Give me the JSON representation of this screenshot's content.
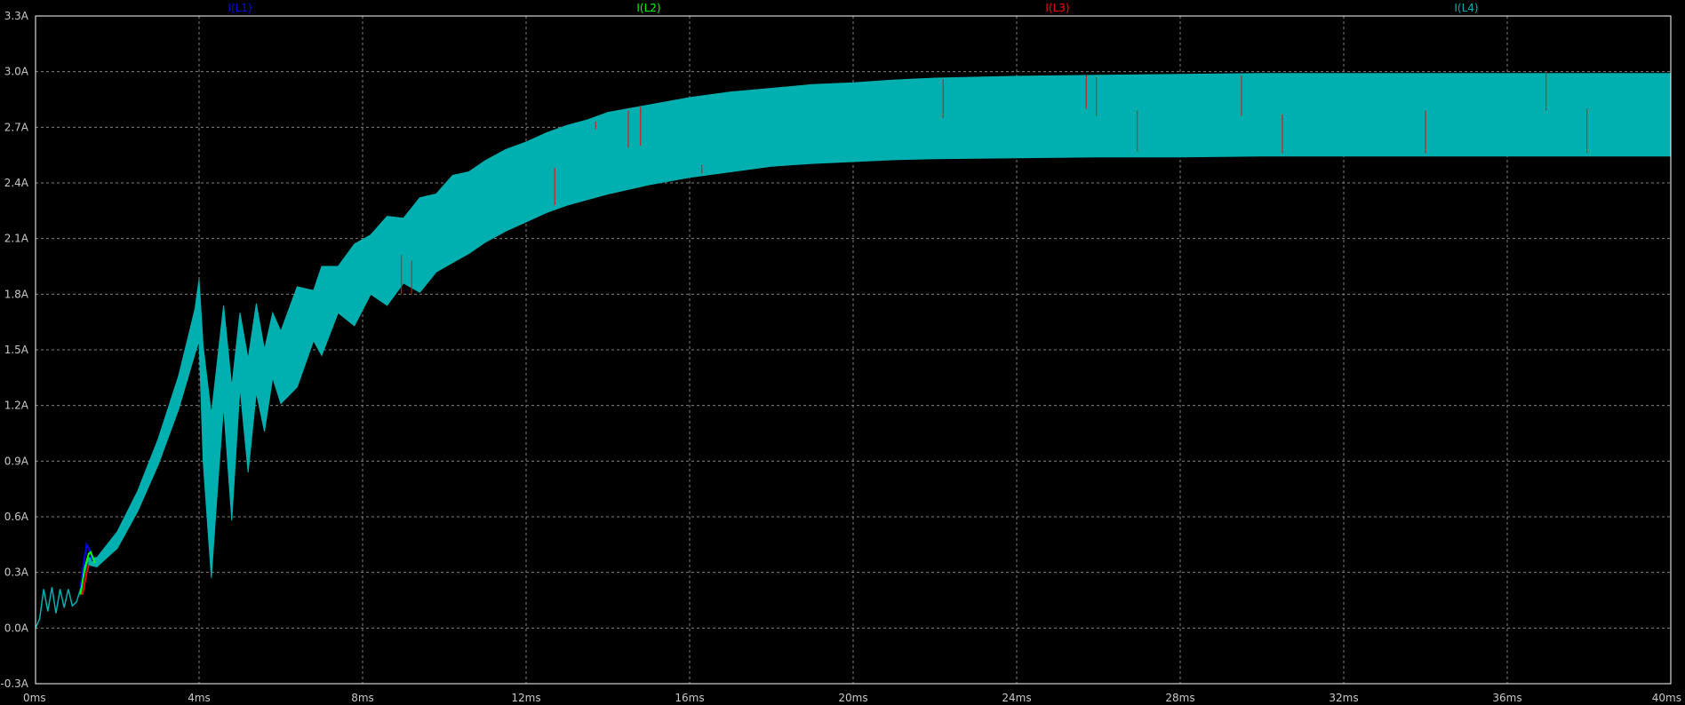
{
  "chart_data": {
    "type": "line",
    "title": "",
    "xlabel": "",
    "ylabel": "",
    "x_unit": "ms",
    "y_unit": "A",
    "xlim": [
      0,
      40
    ],
    "ylim": [
      -0.3,
      3.3
    ],
    "grid": true,
    "legend_position": "top",
    "background": "#000000",
    "x_ticks": [
      {
        "value": 0,
        "label": "0ms"
      },
      {
        "value": 4,
        "label": "4ms"
      },
      {
        "value": 8,
        "label": "8ms"
      },
      {
        "value": 12,
        "label": "12ms"
      },
      {
        "value": 16,
        "label": "16ms"
      },
      {
        "value": 20,
        "label": "20ms"
      },
      {
        "value": 24,
        "label": "24ms"
      },
      {
        "value": 28,
        "label": "28ms"
      },
      {
        "value": 32,
        "label": "32ms"
      },
      {
        "value": 36,
        "label": "36ms"
      },
      {
        "value": 40,
        "label": "40ms"
      }
    ],
    "y_ticks": [
      {
        "value": -0.3,
        "label": "-0.3A"
      },
      {
        "value": 0.0,
        "label": "0.0A"
      },
      {
        "value": 0.3,
        "label": "0.3A"
      },
      {
        "value": 0.6,
        "label": "0.6A"
      },
      {
        "value": 0.9,
        "label": "0.9A"
      },
      {
        "value": 1.2,
        "label": "1.2A"
      },
      {
        "value": 1.5,
        "label": "1.5A"
      },
      {
        "value": 1.8,
        "label": "1.8A"
      },
      {
        "value": 2.1,
        "label": "2.1A"
      },
      {
        "value": 2.4,
        "label": "2.4A"
      },
      {
        "value": 2.7,
        "label": "2.7A"
      },
      {
        "value": 3.0,
        "label": "3.0A"
      },
      {
        "value": 3.3,
        "label": "3.3A"
      }
    ],
    "series": [
      {
        "name": "I(L1)",
        "color": "#0000ff",
        "legend_x": 5,
        "x": [
          1.1,
          1.2,
          1.25,
          1.3,
          1.4
        ],
        "y": [
          0.22,
          0.38,
          0.45,
          0.43,
          0.36
        ]
      },
      {
        "name": "I(L2)",
        "color": "#00ff00",
        "legend_x": 15,
        "x": [
          1.1,
          1.2,
          1.3,
          1.35,
          1.45
        ],
        "y": [
          0.18,
          0.32,
          0.4,
          0.41,
          0.35
        ]
      },
      {
        "name": "I(L3)",
        "color": "#ff0000",
        "legend_x": 25,
        "x": [
          1.15,
          1.2,
          1.25,
          1.3
        ],
        "y": [
          0.18,
          0.24,
          0.3,
          0.34
        ],
        "spikes": [
          {
            "x": 8.95,
            "y_low": 1.8,
            "y_high": 2.01
          },
          {
            "x": 9.2,
            "y_low": 1.8,
            "y_high": 1.98
          },
          {
            "x": 12.7,
            "y_low": 2.28,
            "y_high": 2.48
          },
          {
            "x": 13.7,
            "y_low": 2.69,
            "y_high": 2.73
          },
          {
            "x": 14.5,
            "y_low": 2.59,
            "y_high": 2.79
          },
          {
            "x": 14.8,
            "y_low": 2.6,
            "y_high": 2.81
          },
          {
            "x": 16.3,
            "y_low": 2.45,
            "y_high": 2.5
          },
          {
            "x": 22.2,
            "y_low": 2.75,
            "y_high": 2.96
          },
          {
            "x": 25.7,
            "y_low": 2.8,
            "y_high": 2.98
          },
          {
            "x": 25.95,
            "y_low": 2.76,
            "y_high": 2.97
          },
          {
            "x": 26.95,
            "y_low": 2.57,
            "y_high": 2.79
          },
          {
            "x": 29.5,
            "y_low": 2.76,
            "y_high": 2.98
          },
          {
            "x": 30.5,
            "y_low": 2.56,
            "y_high": 2.77
          },
          {
            "x": 34.0,
            "y_low": 2.56,
            "y_high": 2.79
          },
          {
            "x": 36.95,
            "y_low": 2.79,
            "y_high": 3.0
          },
          {
            "x": 37.95,
            "y_low": 2.56,
            "y_high": 2.8
          }
        ]
      },
      {
        "name": "I(L4)",
        "color": "#00b0b0",
        "legend_x": 35,
        "startup": {
          "x": [
            0,
            0.1,
            0.2,
            0.3,
            0.4,
            0.5,
            0.6,
            0.7,
            0.8,
            0.9,
            1.0,
            1.1,
            1.2,
            1.3
          ],
          "y": [
            0,
            0.05,
            0.21,
            0.09,
            0.22,
            0.08,
            0.21,
            0.11,
            0.21,
            0.12,
            0.14,
            0.21,
            0.3,
            0.38
          ]
        },
        "upper": {
          "x": [
            1.3,
            1.5,
            2.0,
            2.5,
            3.0,
            3.5,
            3.9,
            4.0,
            4.1,
            4.3,
            4.6,
            4.8,
            5.0,
            5.2,
            5.4,
            5.6,
            5.8,
            6.0,
            6.4,
            6.8,
            7.0,
            7.4,
            7.8,
            8.2,
            8.6,
            9.0,
            9.4,
            9.8,
            10.2,
            10.6,
            11.0,
            11.5,
            12.0,
            12.5,
            13.0,
            13.5,
            14.0,
            15.0,
            16.0,
            17.0,
            18.0,
            19.0,
            20.0,
            21.0,
            22.0,
            24.0,
            26.0,
            28.0,
            30.0,
            32.0,
            34.0,
            36.0,
            38.0,
            40.0
          ],
          "y": [
            0.38,
            0.38,
            0.52,
            0.74,
            1.02,
            1.36,
            1.72,
            1.88,
            1.52,
            1.15,
            1.74,
            1.3,
            1.7,
            1.45,
            1.75,
            1.5,
            1.7,
            1.6,
            1.84,
            1.82,
            1.95,
            1.95,
            2.07,
            2.12,
            2.22,
            2.21,
            2.32,
            2.34,
            2.44,
            2.46,
            2.52,
            2.58,
            2.62,
            2.67,
            2.71,
            2.74,
            2.78,
            2.82,
            2.86,
            2.89,
            2.91,
            2.93,
            2.94,
            2.955,
            2.965,
            2.975,
            2.98,
            2.985,
            2.99,
            2.99,
            2.99,
            2.99,
            2.99,
            2.99
          ]
        },
        "lower": {
          "x": [
            1.3,
            1.5,
            2.0,
            2.5,
            3.0,
            3.5,
            3.9,
            4.0,
            4.1,
            4.3,
            4.45,
            4.6,
            4.8,
            5.0,
            5.2,
            5.4,
            5.6,
            5.8,
            6.0,
            6.4,
            6.8,
            7.0,
            7.4,
            7.8,
            8.2,
            8.6,
            9.0,
            9.4,
            9.8,
            10.2,
            10.6,
            11.0,
            11.5,
            12.0,
            12.5,
            13.0,
            13.5,
            14.0,
            15.0,
            16.0,
            17.0,
            18.0,
            19.0,
            20.0,
            21.0,
            22.0,
            24.0,
            26.0,
            28.0,
            30.0,
            32.0,
            34.0,
            36.0,
            38.0,
            40.0
          ],
          "y": [
            0.34,
            0.33,
            0.43,
            0.63,
            0.88,
            1.18,
            1.48,
            1.55,
            0.9,
            0.27,
            0.75,
            1.2,
            0.58,
            1.3,
            0.84,
            1.27,
            1.06,
            1.35,
            1.21,
            1.3,
            1.55,
            1.47,
            1.7,
            1.63,
            1.8,
            1.74,
            1.86,
            1.81,
            1.92,
            1.97,
            2.02,
            2.08,
            2.14,
            2.19,
            2.24,
            2.28,
            2.31,
            2.34,
            2.39,
            2.43,
            2.46,
            2.49,
            2.505,
            2.515,
            2.525,
            2.53,
            2.535,
            2.54,
            2.54,
            2.545,
            2.545,
            2.545,
            2.545,
            2.545,
            2.545
          ]
        }
      }
    ]
  }
}
